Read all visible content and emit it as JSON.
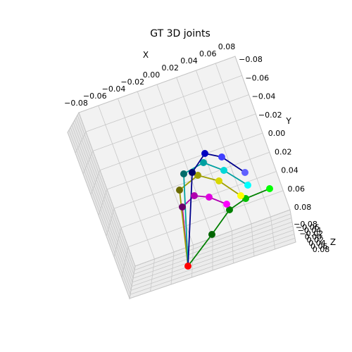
{
  "chart_data": {
    "type": "scatter",
    "title": "GT 3D joints",
    "axes": {
      "x": {
        "label": "X",
        "ticks": [
          "−0.08",
          "−0.06",
          "−0.04",
          "−0.02",
          "0.00",
          "0.02",
          "0.04",
          "0.06",
          "0.08"
        ]
      },
      "y": {
        "label": "Y",
        "ticks": [
          "−0.08",
          "−0.06",
          "−0.04",
          "−0.02",
          "0.00",
          "0.02",
          "0.04",
          "0.06",
          "0.08"
        ]
      },
      "z": {
        "label": "Z",
        "ticks": [
          "−0.08",
          "−0.06",
          "−0.04",
          "−0.02",
          "0.00",
          "0.02",
          "0.04",
          "0.06",
          "0.08"
        ]
      }
    },
    "grid": true,
    "colors": {
      "wrist": "#ff0000",
      "thumb": [
        "#006400",
        "#008000",
        "#00c000",
        "#00ff00"
      ],
      "index": [
        "#6b006b",
        "#b000b0",
        "#e000e0",
        "#ff00ff"
      ],
      "middle": [
        "#6b6b00",
        "#a0a000",
        "#d8d800",
        "#ffff00"
      ],
      "ring": [
        "#006b6b",
        "#00a0a0",
        "#00d8d8",
        "#00ffff"
      ],
      "pinky": [
        "#00006b",
        "#0000c0",
        "#4040ff",
        "#6060ff"
      ],
      "thumb_bone": "#008000",
      "index_bone": "#b000b0",
      "middle_bone": "#a0a000",
      "ring_bone": "#00a0a0",
      "pinky_bone": "#00008b"
    }
  }
}
